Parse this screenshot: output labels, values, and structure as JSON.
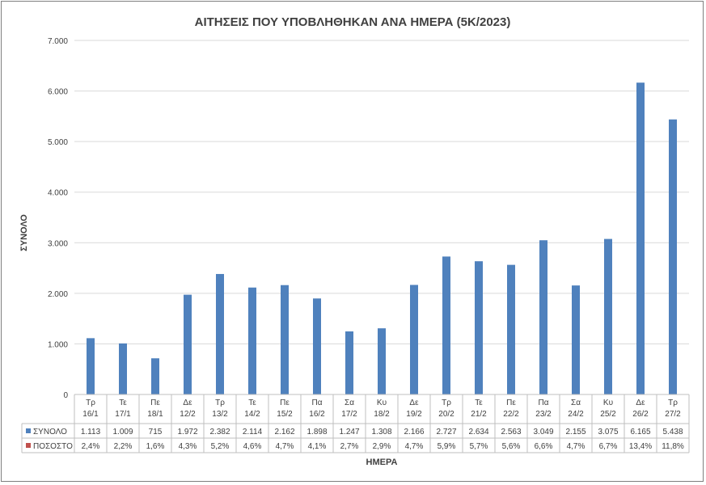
{
  "chart_data": {
    "type": "bar",
    "title": "ΑΙΤΗΣΕΙΣ ΠΟΥ ΥΠΟΒΛΗΘΗΚΑΝ ΑΝΑ ΗΜΕΡΑ (5Κ/2023)",
    "xlabel": "ΗΜΕΡΑ",
    "ylabel": "ΣΥΝΟΛΟ",
    "ylim": [
      0,
      7000
    ],
    "yticks": [
      "0",
      "1.000",
      "2.000",
      "3.000",
      "4.000",
      "5.000",
      "6.000",
      "7.000"
    ],
    "grid": true,
    "categories": [
      {
        "day": "Τρ",
        "date": "16/1"
      },
      {
        "day": "Τε",
        "date": "17/1"
      },
      {
        "day": "Πε",
        "date": "18/1"
      },
      {
        "day": "Δε",
        "date": "12/2"
      },
      {
        "day": "Τρ",
        "date": "13/2"
      },
      {
        "day": "Τε",
        "date": "14/2"
      },
      {
        "day": "Πε",
        "date": "15/2"
      },
      {
        "day": "Πα",
        "date": "16/2"
      },
      {
        "day": "Σα",
        "date": "17/2"
      },
      {
        "day": "Κυ",
        "date": "18/2"
      },
      {
        "day": "Δε",
        "date": "19/2"
      },
      {
        "day": "Τρ",
        "date": "20/2"
      },
      {
        "day": "Τε",
        "date": "21/2"
      },
      {
        "day": "Πε",
        "date": "22/2"
      },
      {
        "day": "Πα",
        "date": "23/2"
      },
      {
        "day": "Σα",
        "date": "24/2"
      },
      {
        "day": "Κυ",
        "date": "25/2"
      },
      {
        "day": "Δε",
        "date": "26/2"
      },
      {
        "day": "Τρ",
        "date": "27/2"
      }
    ],
    "series": [
      {
        "name": "ΣΥΝΟΛΟ",
        "color": "#4f81bd",
        "values": [
          1113,
          1009,
          715,
          1972,
          2382,
          2114,
          2162,
          1898,
          1247,
          1308,
          2166,
          2727,
          2634,
          2563,
          3049,
          2155,
          3075,
          6165,
          5438
        ],
        "labels": [
          "1.113",
          "1.009",
          "715",
          "1.972",
          "2.382",
          "2.114",
          "2.162",
          "1.898",
          "1.247",
          "1.308",
          "2.166",
          "2.727",
          "2.634",
          "2.563",
          "3.049",
          "2.155",
          "3.075",
          "6.165",
          "5.438"
        ]
      },
      {
        "name": "ΠΟΣΟΣΤΟ",
        "color": "#c0504d",
        "values": [
          2.4,
          2.2,
          1.6,
          4.3,
          5.2,
          4.6,
          4.7,
          4.1,
          2.7,
          2.9,
          4.7,
          5.9,
          5.7,
          5.6,
          6.6,
          4.7,
          6.7,
          13.4,
          11.8
        ],
        "labels": [
          "2,4%",
          "2,2%",
          "1,6%",
          "4,3%",
          "5,2%",
          "4,6%",
          "4,7%",
          "4,1%",
          "2,7%",
          "2,9%",
          "4,7%",
          "5,9%",
          "5,7%",
          "5,6%",
          "6,6%",
          "4,7%",
          "6,7%",
          "13,4%",
          "11,8%"
        ]
      }
    ]
  }
}
